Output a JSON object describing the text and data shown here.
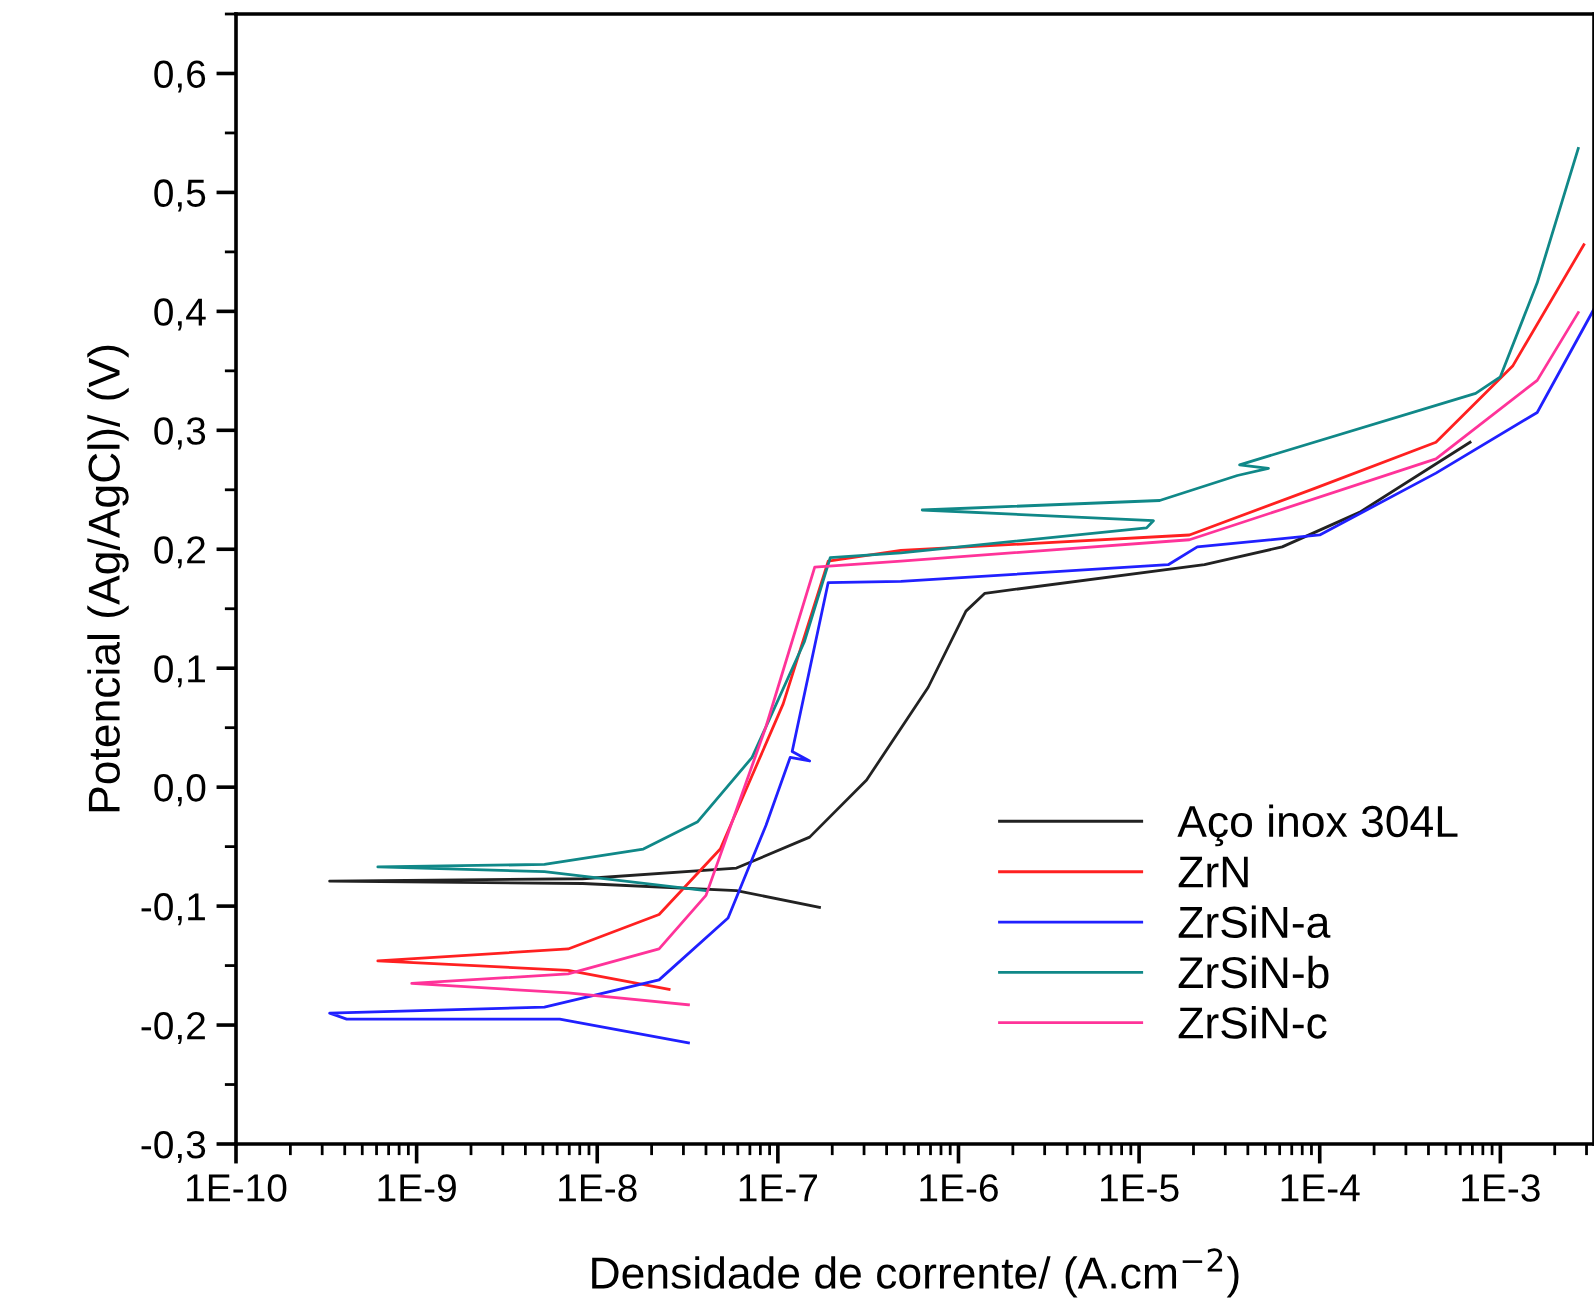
{
  "chart_data": {
    "type": "line",
    "xlabel": "Densidade de corrente/ (A.cm$^{−2}$)",
    "ylabel": "Potencial (Ag/AgCl)/ (V)",
    "log": "x",
    "xlim": [
      1e-10,
      0.0033
    ],
    "ylim": [
      -0.3,
      0.65
    ],
    "xticks": [
      {
        "value": 1e-10,
        "label": "1E-10"
      },
      {
        "value": 1e-09,
        "label": "1E-9"
      },
      {
        "value": 1e-08,
        "label": "1E-8"
      },
      {
        "value": 1e-07,
        "label": "1E-7"
      },
      {
        "value": 1e-06,
        "label": "1E-6"
      },
      {
        "value": 1e-05,
        "label": "1E-5"
      },
      {
        "value": 0.0001,
        "label": "1E-4"
      },
      {
        "value": 0.001,
        "label": "1E-3"
      }
    ],
    "yticks": [
      {
        "value": -0.3,
        "label": "-0,3"
      },
      {
        "value": -0.2,
        "label": "-0,2"
      },
      {
        "value": -0.1,
        "label": "-0,1"
      },
      {
        "value": 0.0,
        "label": "0,0"
      },
      {
        "value": 0.1,
        "label": "0,1"
      },
      {
        "value": 0.2,
        "label": "0,2"
      },
      {
        "value": 0.3,
        "label": "0,3"
      },
      {
        "value": 0.4,
        "label": "0,4"
      },
      {
        "value": 0.5,
        "label": "0,5"
      },
      {
        "value": 0.6,
        "label": "0,6"
      }
    ],
    "grid": false,
    "legend": "bottom right",
    "marker": "none",
    "line_style": "solid",
    "series": [
      {
        "name": "Aço inox 304L",
        "color": "#222222",
        "x": [
          1.7e-07,
          5.9e-08,
          8.3e-09,
          3.3e-10,
          8.3e-09,
          5.9e-08,
          1.5e-07,
          3.1e-07,
          6.8e-07,
          1.1e-06,
          1.4e-06,
          2.3e-05,
          6.2e-05,
          0.000166,
          0.00068
        ],
        "values": [
          -0.101,
          -0.087,
          -0.081,
          -0.079,
          -0.077,
          -0.068,
          -0.042,
          0.006,
          0.084,
          0.148,
          0.163,
          0.187,
          0.202,
          0.231,
          0.29
        ]
      },
      {
        "name": "ZrN",
        "color": "#ff2020",
        "x": [
          2.5e-08,
          6.9e-09,
          6.1e-10,
          6.9e-09,
          2.2e-08,
          4.8e-08,
          1.07e-07,
          1.9e-07,
          4.8e-07,
          1.9e-05,
          9.3e-05,
          0.00044,
          0.00117,
          0.0029
        ],
        "values": [
          -0.17,
          -0.154,
          -0.146,
          -0.136,
          -0.107,
          -0.052,
          0.07,
          0.19,
          0.199,
          0.212,
          0.251,
          0.29,
          0.354,
          0.456
        ]
      },
      {
        "name": "ZrSiN-a",
        "color": "#2020ff",
        "x": [
          3.2e-08,
          6.2e-09,
          4.1e-10,
          3.3e-10,
          5.1e-09,
          2.2e-08,
          5.3e-08,
          8.6e-08,
          1.17e-07,
          1.5e-07,
          1.2e-07,
          1.9e-07,
          4.8e-07,
          1.45e-05,
          2.1e-05,
          0.0001,
          0.00044,
          0.0016,
          0.0033
        ],
        "values": [
          -0.215,
          -0.195,
          -0.195,
          -0.19,
          -0.185,
          -0.162,
          -0.11,
          -0.032,
          0.025,
          0.022,
          0.03,
          0.172,
          0.173,
          0.187,
          0.202,
          0.212,
          0.264,
          0.315,
          0.402
        ]
      },
      {
        "name": "ZrSiN-b",
        "color": "#108888",
        "x": [
          4e-08,
          5.1e-09,
          6.1e-10,
          5.1e-09,
          1.8e-08,
          3.6e-08,
          7.2e-08,
          1.4e-07,
          1.95e-07,
          4.8e-07,
          1.1e-05,
          1.2e-05,
          6.3e-07,
          1.3e-05,
          3.5e-05,
          5.2e-05,
          3.6e-05,
          0.00073,
          0.001,
          0.0016,
          0.0027
        ],
        "values": [
          -0.087,
          -0.071,
          -0.067,
          -0.065,
          -0.052,
          -0.029,
          0.025,
          0.122,
          0.193,
          0.197,
          0.218,
          0.224,
          0.233,
          0.241,
          0.262,
          0.268,
          0.271,
          0.331,
          0.345,
          0.424,
          0.537
        ]
      },
      {
        "name": "ZrSiN-c",
        "color": "#ff3399",
        "x": [
          3.2e-08,
          6.9e-09,
          9.4e-10,
          6.9e-09,
          2.2e-08,
          4e-08,
          8.6e-08,
          1.6e-07,
          4.8e-07,
          1.9e-05,
          0.00044,
          0.0016,
          0.0027
        ],
        "values": [
          -0.183,
          -0.173,
          -0.165,
          -0.157,
          -0.136,
          -0.091,
          0.051,
          0.185,
          0.19,
          0.208,
          0.276,
          0.342,
          0.399
        ]
      }
    ]
  }
}
